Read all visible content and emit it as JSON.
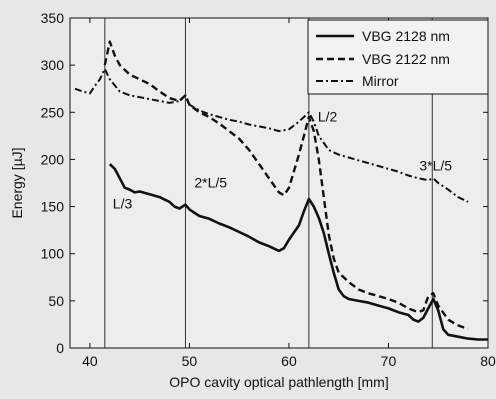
{
  "chart_data": {
    "type": "line",
    "xlabel": "OPO cavity optical pathlength [mm]",
    "ylabel": "Energy [µJ]",
    "xlim": [
      38,
      80
    ],
    "ylim": [
      0,
      350
    ],
    "xticks": [
      40,
      50,
      60,
      70,
      80
    ],
    "yticks": [
      0,
      50,
      100,
      150,
      200,
      250,
      300,
      350
    ],
    "grid": false,
    "legend_position": "top-right",
    "background_color": "#e7e7e7",
    "line_color": "#111111",
    "vlines": [
      {
        "x": 41.5,
        "label": "L/3",
        "label_x": 42.3,
        "label_y": 148
      },
      {
        "x": 49.6,
        "label": "2*L/5",
        "label_x": 50.5,
        "label_y": 170
      },
      {
        "x": 62.0,
        "label": "L/2",
        "label_x": 62.9,
        "label_y": 240
      },
      {
        "x": 74.4,
        "label": "3*L/5",
        "label_x": 73.1,
        "label_y": 188
      }
    ],
    "series": [
      {
        "name": "VBG 2128 nm",
        "style": "solid",
        "x": [
          42.0,
          42.5,
          43.0,
          43.5,
          44.0,
          44.5,
          45.0,
          46.0,
          47.0,
          48.0,
          48.5,
          49.0,
          49.6,
          50.0,
          51.0,
          52.0,
          53.0,
          54.0,
          55.0,
          56.0,
          57.0,
          58.0,
          59.0,
          59.5,
          60.0,
          61.0,
          61.5,
          62.0,
          62.5,
          63.0,
          63.5,
          64.0,
          64.5,
          65.0,
          65.5,
          66.0,
          67.0,
          68.0,
          69.0,
          70.0,
          71.0,
          72.0,
          72.5,
          73.0,
          73.5,
          74.0,
          74.5,
          75.0,
          75.5,
          76.0,
          77.0,
          78.0,
          79.0,
          80.0
        ],
        "y": [
          195,
          190,
          180,
          170,
          168,
          165,
          166,
          163,
          160,
          155,
          150,
          148,
          152,
          147,
          140,
          137,
          132,
          128,
          123,
          118,
          112,
          108,
          103,
          106,
          115,
          130,
          145,
          158,
          150,
          138,
          122,
          100,
          80,
          62,
          55,
          52,
          50,
          48,
          45,
          42,
          38,
          35,
          30,
          28,
          32,
          42,
          52,
          40,
          20,
          14,
          12,
          10,
          9,
          9
        ]
      },
      {
        "name": "VBG 2122 nm",
        "style": "dashed",
        "x": [
          41.5,
          42.0,
          42.5,
          43.0,
          44.0,
          45.0,
          46.0,
          47.0,
          48.0,
          49.0,
          49.6,
          50.0,
          51.0,
          52.0,
          53.0,
          54.0,
          55.0,
          56.0,
          57.0,
          58.0,
          59.0,
          59.5,
          60.0,
          61.0,
          61.5,
          62.0,
          62.5,
          63.0,
          63.5,
          64.0,
          64.5,
          65.0,
          66.0,
          67.0,
          68.0,
          69.0,
          70.0,
          71.0,
          72.0,
          73.0,
          73.5,
          74.0,
          74.5,
          75.0,
          76.0,
          77.0,
          78.0
        ],
        "y": [
          300,
          325,
          310,
          300,
          290,
          285,
          280,
          272,
          265,
          262,
          268,
          258,
          250,
          245,
          238,
          230,
          222,
          210,
          195,
          180,
          165,
          162,
          170,
          205,
          225,
          245,
          230,
          200,
          160,
          120,
          95,
          80,
          70,
          62,
          58,
          55,
          52,
          48,
          42,
          38,
          40,
          55,
          58,
          45,
          30,
          24,
          20
        ]
      },
      {
        "name": "Mirror",
        "style": "dashdot",
        "x": [
          38.5,
          39.0,
          40.0,
          40.5,
          41.0,
          41.5,
          42.0,
          43.0,
          44.0,
          45.0,
          46.0,
          47.0,
          48.0,
          49.0,
          49.6,
          50.0,
          51.0,
          52.0,
          53.0,
          54.0,
          55.0,
          56.0,
          57.0,
          58.0,
          59.0,
          60.0,
          61.0,
          61.5,
          62.0,
          62.5,
          63.0,
          64.0,
          65.0,
          66.0,
          67.0,
          68.0,
          69.0,
          70.0,
          71.0,
          72.0,
          73.0,
          74.0,
          74.5,
          75.0,
          76.0,
          77.0,
          78.0
        ],
        "y": [
          275,
          273,
          270,
          278,
          285,
          296,
          285,
          272,
          268,
          266,
          264,
          262,
          260,
          262,
          268,
          258,
          252,
          248,
          245,
          242,
          240,
          237,
          235,
          233,
          230,
          232,
          240,
          245,
          250,
          240,
          225,
          210,
          205,
          202,
          199,
          196,
          193,
          190,
          187,
          183,
          180,
          178,
          180,
          175,
          168,
          160,
          155
        ]
      }
    ]
  }
}
